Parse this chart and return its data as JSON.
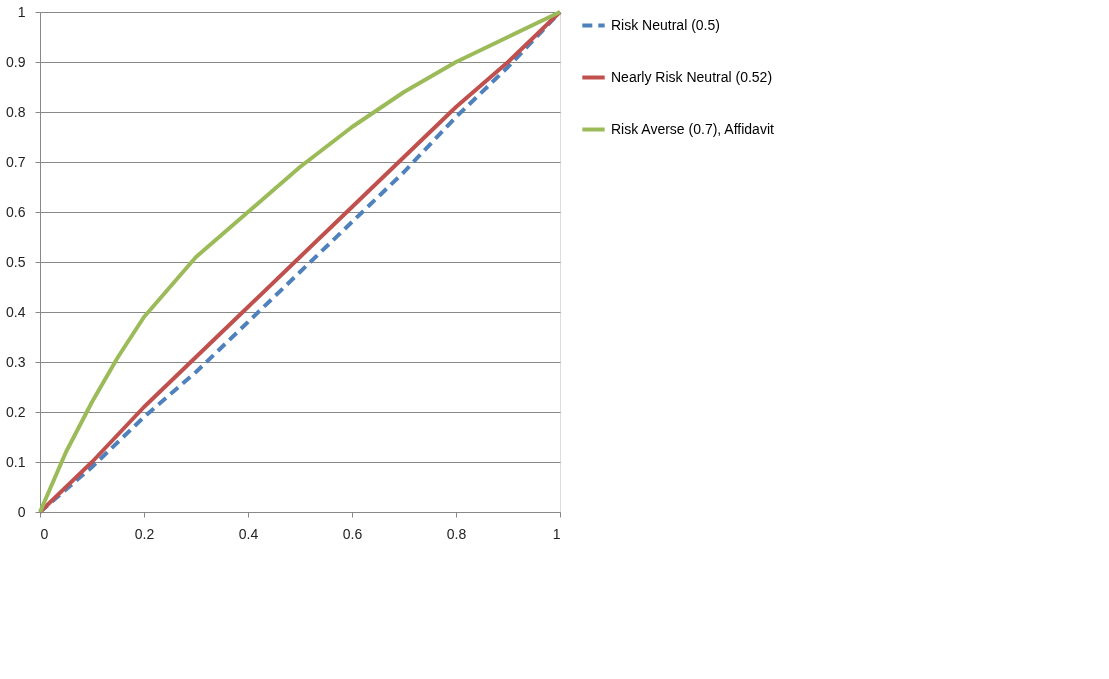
{
  "chart_data": {
    "type": "line",
    "xlim": [
      0,
      1
    ],
    "ylim": [
      0,
      1
    ],
    "xticks": [
      0,
      0.2,
      0.4,
      0.6,
      0.8,
      1
    ],
    "yticks": [
      0,
      0.1,
      0.2,
      0.3,
      0.4,
      0.5,
      0.6,
      0.7,
      0.8,
      0.9,
      1
    ],
    "grid": "y",
    "legend": "right",
    "marker": "none",
    "series": [
      {
        "name": "Risk Neutral (0.5)",
        "color": "#4f81bd",
        "line_style": "dashed",
        "x": [
          0,
          0.1,
          0.2,
          0.3,
          0.4,
          0.5,
          0.6,
          0.7,
          0.8,
          0.9,
          1
        ],
        "values": [
          0,
          0.09,
          0.19,
          0.28,
          0.38,
          0.48,
          0.58,
          0.68,
          0.79,
          0.89,
          1
        ]
      },
      {
        "name": "Nearly Risk Neutral (0.52)",
        "color": "#c0504d",
        "line_style": "solid",
        "x": [
          0,
          0.1,
          0.2,
          0.3,
          0.4,
          0.5,
          0.6,
          0.7,
          0.8,
          0.9,
          1
        ],
        "values": [
          0,
          0.1,
          0.21,
          0.31,
          0.41,
          0.51,
          0.61,
          0.71,
          0.81,
          0.9,
          1
        ]
      },
      {
        "name": "Risk Averse (0.7), Affidavit",
        "color": "#9bbb59",
        "line_style": "solid",
        "x": [
          0,
          0.05,
          0.1,
          0.15,
          0.2,
          0.3,
          0.4,
          0.5,
          0.6,
          0.7,
          0.8,
          0.9,
          1
        ],
        "values": [
          0,
          0.12,
          0.22,
          0.31,
          0.39,
          0.51,
          0.6,
          0.69,
          0.77,
          0.84,
          0.9,
          0.95,
          1
        ]
      }
    ]
  }
}
